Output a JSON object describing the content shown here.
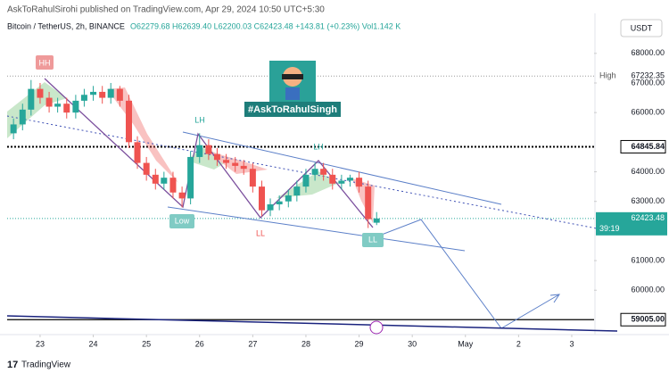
{
  "header": {
    "publisher": "AskToRahulSirohi published on TradingView.com, Apr 29, 2024 10:50 UTC+5:30",
    "symbol": "Bitcoin / TetherUS, 2h, BINANCE",
    "ohlc": "O62279.68 H62639.40 L62200.03 C62423.48 +143.81 (+0.23%) Vol1.142 K",
    "currency": "USDT",
    "badge": "#AskToRahulSingh",
    "brand": "TradingView"
  },
  "annotations": {
    "hh": "HH",
    "lh1": "LH",
    "lh2": "LH",
    "low": "Low",
    "ll1": "LL",
    "ll2": "LL"
  },
  "chart_data": {
    "type": "candlestick",
    "x": [
      22.5,
      22.67,
      22.83,
      23,
      23.17,
      23.33,
      23.5,
      23.67,
      23.83,
      24,
      24.17,
      24.33,
      24.5,
      24.67,
      24.83,
      25,
      25.17,
      25.33,
      25.5,
      25.67,
      25.83,
      26,
      26.17,
      26.33,
      26.5,
      26.67,
      26.83,
      27,
      27.17,
      27.33,
      27.5,
      27.67,
      27.83,
      28,
      28.17,
      28.33,
      28.5,
      28.67,
      28.83,
      29,
      29.17,
      29.33
    ],
    "open": [
      65300,
      65600,
      66100,
      66800,
      66500,
      66200,
      66300,
      66000,
      66400,
      66600,
      66700,
      66500,
      66800,
      66400,
      65000,
      64300,
      63900,
      63600,
      63800,
      63300,
      63100,
      64500,
      64900,
      64600,
      64400,
      64300,
      64200,
      64100,
      63500,
      62700,
      62900,
      63000,
      63200,
      63500,
      63900,
      64100,
      63900,
      63600,
      63700,
      63800,
      63500,
      62279.68
    ],
    "high": [
      65800,
      66300,
      67100,
      67000,
      66700,
      66500,
      66500,
      66600,
      66800,
      66900,
      66900,
      67000,
      66900,
      66600,
      65200,
      64500,
      64100,
      64000,
      64000,
      63500,
      64700,
      65300,
      65100,
      64800,
      64600,
      64500,
      64400,
      64300,
      63700,
      63100,
      63200,
      63400,
      63700,
      64100,
      64300,
      64300,
      64100,
      63900,
      63900,
      64000,
      63700,
      62639.4
    ],
    "low": [
      65100,
      65400,
      65900,
      66300,
      66000,
      66000,
      65800,
      65800,
      66200,
      66400,
      66300,
      66300,
      66200,
      64800,
      64100,
      63700,
      63400,
      63400,
      63100,
      62800,
      62900,
      64300,
      64400,
      64200,
      64100,
      64000,
      63900,
      63300,
      62500,
      62500,
      62700,
      62800,
      63000,
      63300,
      63700,
      63700,
      63400,
      63400,
      63500,
      63300,
      62100,
      62200.03
    ],
    "close": [
      65600,
      66100,
      66800,
      66500,
      66200,
      66300,
      66000,
      66400,
      66600,
      66700,
      66500,
      66800,
      66400,
      65000,
      64300,
      63900,
      63600,
      63800,
      63300,
      63100,
      64500,
      64900,
      64600,
      64400,
      64300,
      64200,
      64100,
      63500,
      62700,
      62900,
      63000,
      63200,
      63500,
      63900,
      64100,
      63900,
      63600,
      63700,
      63800,
      63500,
      62400,
      62423.48
    ],
    "up_color": "#26a69a",
    "down_color": "#ef5350",
    "xlim": [
      22.38,
      33.42
    ],
    "xticks": [
      23,
      24,
      25,
      26,
      27,
      28,
      29,
      30,
      {
        "value": 31,
        "label": "May"
      },
      {
        "value": 32,
        "label": "2"
      },
      {
        "value": 33,
        "label": "3"
      }
    ],
    "ylim": [
      58500,
      69200
    ],
    "yticks": [
      {
        "value": 60000,
        "label": "60000.00"
      },
      {
        "value": 61000,
        "label": "61000.00"
      },
      {
        "value": 63000,
        "label": "63000.00"
      },
      {
        "value": 64000,
        "label": "64000.00"
      },
      {
        "value": 66000,
        "label": "66000.00"
      },
      {
        "value": 67000,
        "label": "67000.00"
      },
      {
        "value": 68000,
        "label": "68000.00"
      }
    ],
    "levels": [
      {
        "name": "High",
        "value": 67232.35
      },
      {
        "value": 64845.84
      },
      {
        "name": "Low",
        "value": 62150.52
      },
      {
        "value": 59005,
        "value_label": "59005.00"
      }
    ],
    "last_price": 62423.48,
    "countdown": "39:19"
  }
}
